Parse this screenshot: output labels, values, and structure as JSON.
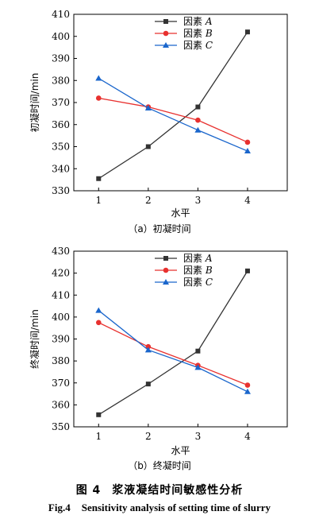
{
  "chart_data": [
    {
      "type": "line",
      "subtitle": "（a）初凝时间",
      "xlabel": "水平",
      "ylabel": "初凝时间/min",
      "x": [
        1,
        2,
        3,
        4
      ],
      "xticks": [
        "1",
        "2",
        "3",
        "4"
      ],
      "ylim": [
        330,
        410
      ],
      "yticks": [
        330,
        340,
        350,
        360,
        370,
        380,
        390,
        400,
        410
      ],
      "grid": false,
      "legend": "top-center",
      "series": [
        {
          "name": "因素 A",
          "color": "#333333",
          "marker": "square",
          "values": [
            335.5,
            350,
            368,
            402
          ]
        },
        {
          "name": "因素 B",
          "color": "#e8312f",
          "marker": "circle",
          "values": [
            372,
            368,
            362,
            352
          ]
        },
        {
          "name": "因素 C",
          "color": "#1a66cc",
          "marker": "triangle",
          "values": [
            381,
            367.5,
            357.5,
            348
          ]
        }
      ]
    },
    {
      "type": "line",
      "subtitle": "（b）终凝时间",
      "xlabel": "水平",
      "ylabel": "终凝时间/min",
      "x": [
        1,
        2,
        3,
        4
      ],
      "xticks": [
        "1",
        "2",
        "3",
        "4"
      ],
      "ylim": [
        350,
        430
      ],
      "yticks": [
        350,
        360,
        370,
        380,
        390,
        400,
        410,
        420,
        430
      ],
      "grid": false,
      "legend": "top-center",
      "series": [
        {
          "name": "因素 A",
          "color": "#333333",
          "marker": "square",
          "values": [
            355.5,
            369.5,
            384.5,
            421
          ]
        },
        {
          "name": "因素 B",
          "color": "#e8312f",
          "marker": "circle",
          "values": [
            397.5,
            386.5,
            378,
            369
          ]
        },
        {
          "name": "因素 C",
          "color": "#1a66cc",
          "marker": "triangle",
          "values": [
            403,
            385,
            377,
            366
          ]
        }
      ]
    }
  ],
  "figure": {
    "cn_label": "图 4",
    "cn_title": "浆液凝结时间敏感性分析",
    "en_label": "Fig.4",
    "en_title": "Sensitivity analysis of setting time of slurry"
  }
}
